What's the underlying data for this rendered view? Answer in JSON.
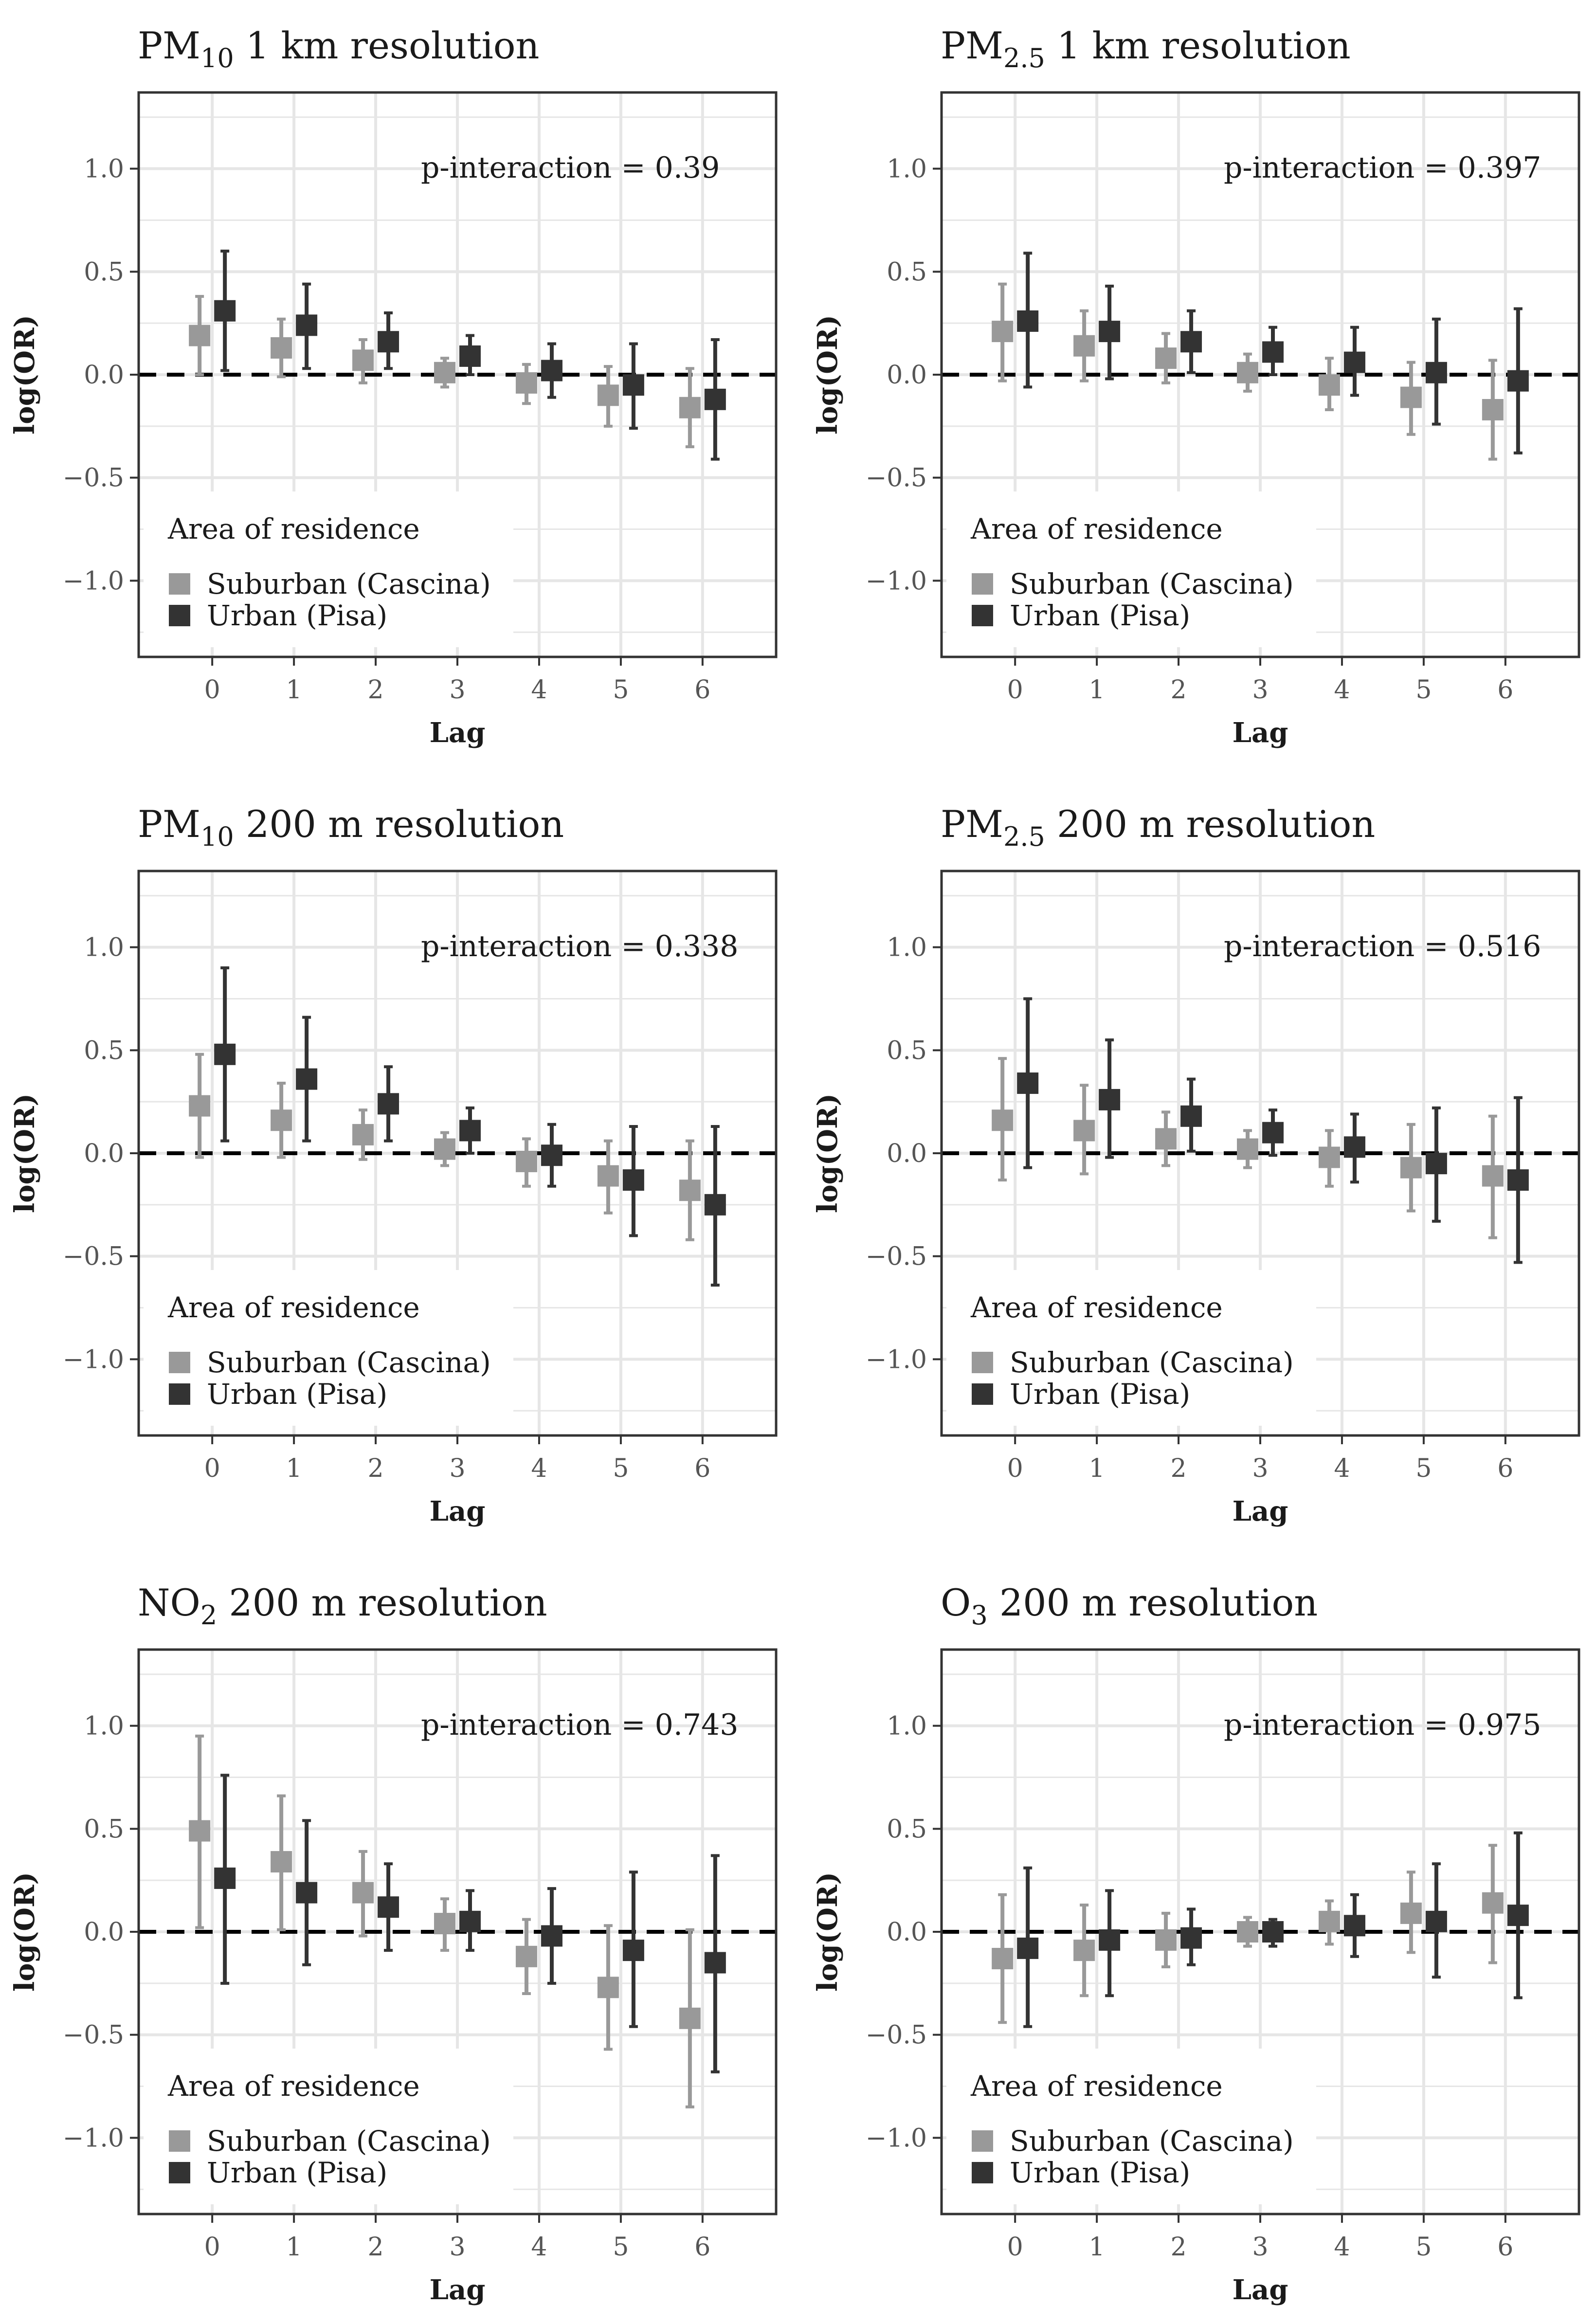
{
  "figure": {
    "x_label": "Lag",
    "y_label": "log(OR)",
    "legend_title": "Area of residence",
    "legend_entries": [
      "Suburban (Cascina)",
      "Urban (Pisa)"
    ],
    "annotation_prefix": "p-interaction = "
  },
  "colors": {
    "suburban": "#999999",
    "urban": "#333333",
    "grid": "#e6e6e6",
    "frame": "#333333",
    "zero_line": "#000000"
  },
  "chart_data": [
    {
      "type": "scatter",
      "title_main": "PM",
      "title_sub": "10",
      "title_rest": " 1 km resolution",
      "p_interaction": "0.39",
      "categories": [
        "0",
        "1",
        "2",
        "3",
        "4",
        "5",
        "6"
      ],
      "ylim": [
        -1.37,
        1.37
      ],
      "yticks": [
        "1.0",
        "0.5",
        "0.0",
        "−0.5",
        "−1.0"
      ],
      "series": [
        {
          "name": "Suburban (Cascina)",
          "values": [
            0.19,
            0.13,
            0.07,
            0.01,
            -0.04,
            -0.1,
            -0.16
          ],
          "lower": [
            0.0,
            -0.01,
            -0.04,
            -0.06,
            -0.14,
            -0.25,
            -0.35
          ],
          "upper": [
            0.38,
            0.27,
            0.17,
            0.08,
            0.05,
            0.04,
            0.03
          ]
        },
        {
          "name": "Urban (Pisa)",
          "values": [
            0.31,
            0.24,
            0.16,
            0.09,
            0.02,
            -0.05,
            -0.12
          ],
          "lower": [
            0.02,
            0.03,
            0.03,
            0.0,
            -0.11,
            -0.26,
            -0.41
          ],
          "upper": [
            0.6,
            0.44,
            0.3,
            0.19,
            0.15,
            0.15,
            0.17
          ]
        }
      ]
    },
    {
      "type": "scatter",
      "title_main": "PM",
      "title_sub": "2.5",
      "title_rest": " 1 km resolution",
      "p_interaction": "0.397",
      "categories": [
        "0",
        "1",
        "2",
        "3",
        "4",
        "5",
        "6"
      ],
      "ylim": [
        -1.37,
        1.37
      ],
      "yticks": [
        "1.0",
        "0.5",
        "0.0",
        "−0.5",
        "−1.0"
      ],
      "series": [
        {
          "name": "Suburban (Cascina)",
          "values": [
            0.21,
            0.14,
            0.08,
            0.01,
            -0.05,
            -0.11,
            -0.17
          ],
          "lower": [
            -0.03,
            -0.03,
            -0.04,
            -0.08,
            -0.17,
            -0.29,
            -0.41
          ],
          "upper": [
            0.44,
            0.31,
            0.2,
            0.1,
            0.08,
            0.06,
            0.07
          ]
        },
        {
          "name": "Urban (Pisa)",
          "values": [
            0.26,
            0.21,
            0.16,
            0.11,
            0.06,
            0.01,
            -0.03
          ],
          "lower": [
            -0.06,
            -0.02,
            0.01,
            0.0,
            -0.1,
            -0.24,
            -0.38
          ],
          "upper": [
            0.59,
            0.43,
            0.31,
            0.23,
            0.23,
            0.27,
            0.32
          ]
        }
      ]
    },
    {
      "type": "scatter",
      "title_main": "PM",
      "title_sub": "10",
      "title_rest": " 200 m resolution",
      "p_interaction": "0.338",
      "categories": [
        "0",
        "1",
        "2",
        "3",
        "4",
        "5",
        "6"
      ],
      "ylim": [
        -1.37,
        1.37
      ],
      "yticks": [
        "1.0",
        "0.5",
        "0.0",
        "−0.5",
        "−1.0"
      ],
      "series": [
        {
          "name": "Suburban (Cascina)",
          "values": [
            0.23,
            0.16,
            0.09,
            0.02,
            -0.04,
            -0.11,
            -0.18
          ],
          "lower": [
            -0.02,
            -0.02,
            -0.03,
            -0.06,
            -0.16,
            -0.29,
            -0.42
          ],
          "upper": [
            0.48,
            0.34,
            0.21,
            0.1,
            0.07,
            0.06,
            0.06
          ]
        },
        {
          "name": "Urban (Pisa)",
          "values": [
            0.48,
            0.36,
            0.24,
            0.11,
            -0.01,
            -0.13,
            -0.25
          ],
          "lower": [
            0.06,
            0.06,
            0.06,
            0.0,
            -0.16,
            -0.4,
            -0.64
          ],
          "upper": [
            0.9,
            0.66,
            0.42,
            0.22,
            0.14,
            0.13,
            0.13
          ]
        }
      ]
    },
    {
      "type": "scatter",
      "title_main": "PM",
      "title_sub": "2.5",
      "title_rest": " 200 m resolution",
      "p_interaction": "0.516",
      "categories": [
        "0",
        "1",
        "2",
        "3",
        "4",
        "5",
        "6"
      ],
      "ylim": [
        -1.37,
        1.37
      ],
      "yticks": [
        "1.0",
        "0.5",
        "0.0",
        "−0.5",
        "−1.0"
      ],
      "series": [
        {
          "name": "Suburban (Cascina)",
          "values": [
            0.16,
            0.11,
            0.07,
            0.02,
            -0.02,
            -0.07,
            -0.11
          ],
          "lower": [
            -0.13,
            -0.1,
            -0.06,
            -0.07,
            -0.16,
            -0.28,
            -0.41
          ],
          "upper": [
            0.46,
            0.33,
            0.2,
            0.11,
            0.11,
            0.14,
            0.18
          ]
        },
        {
          "name": "Urban (Pisa)",
          "values": [
            0.34,
            0.26,
            0.18,
            0.1,
            0.03,
            -0.05,
            -0.13
          ],
          "lower": [
            -0.07,
            -0.02,
            0.01,
            -0.01,
            -0.14,
            -0.33,
            -0.53
          ],
          "upper": [
            0.75,
            0.55,
            0.36,
            0.21,
            0.19,
            0.22,
            0.27
          ]
        }
      ]
    },
    {
      "type": "scatter",
      "title_main": "NO",
      "title_sub": "2",
      "title_rest": " 200 m resolution",
      "p_interaction": "0.743",
      "categories": [
        "0",
        "1",
        "2",
        "3",
        "4",
        "5",
        "6"
      ],
      "ylim": [
        -1.37,
        1.37
      ],
      "yticks": [
        "1.0",
        "0.5",
        "0.0",
        "−0.5",
        "−1.0"
      ],
      "series": [
        {
          "name": "Suburban (Cascina)",
          "values": [
            0.49,
            0.34,
            0.19,
            0.04,
            -0.12,
            -0.27,
            -0.42
          ],
          "lower": [
            0.02,
            0.01,
            -0.02,
            -0.09,
            -0.3,
            -0.57,
            -0.85
          ],
          "upper": [
            0.95,
            0.66,
            0.39,
            0.16,
            0.06,
            0.03,
            0.01
          ]
        },
        {
          "name": "Urban (Pisa)",
          "values": [
            0.26,
            0.19,
            0.12,
            0.05,
            -0.02,
            -0.09,
            -0.15
          ],
          "lower": [
            -0.25,
            -0.16,
            -0.09,
            -0.09,
            -0.25,
            -0.46,
            -0.68
          ],
          "upper": [
            0.76,
            0.54,
            0.33,
            0.2,
            0.21,
            0.29,
            0.37
          ]
        }
      ]
    },
    {
      "type": "scatter",
      "title_main": "O",
      "title_sub": "3",
      "title_rest": " 200 m resolution",
      "p_interaction": "0.975",
      "categories": [
        "0",
        "1",
        "2",
        "3",
        "4",
        "5",
        "6"
      ],
      "ylim": [
        -1.37,
        1.37
      ],
      "yticks": [
        "1.0",
        "0.5",
        "0.0",
        "−0.5",
        "−1.0"
      ],
      "series": [
        {
          "name": "Suburban (Cascina)",
          "values": [
            -0.13,
            -0.09,
            -0.04,
            0.0,
            0.05,
            0.09,
            0.14
          ],
          "lower": [
            -0.44,
            -0.31,
            -0.17,
            -0.07,
            -0.06,
            -0.1,
            -0.15
          ],
          "upper": [
            0.18,
            0.13,
            0.09,
            0.07,
            0.15,
            0.29,
            0.42
          ]
        },
        {
          "name": "Urban (Pisa)",
          "values": [
            -0.08,
            -0.04,
            -0.03,
            0.0,
            0.03,
            0.05,
            0.08
          ],
          "lower": [
            -0.46,
            -0.31,
            -0.16,
            -0.07,
            -0.12,
            -0.22,
            -0.32
          ],
          "upper": [
            0.31,
            0.2,
            0.11,
            0.06,
            0.18,
            0.33,
            0.48
          ]
        }
      ]
    }
  ]
}
